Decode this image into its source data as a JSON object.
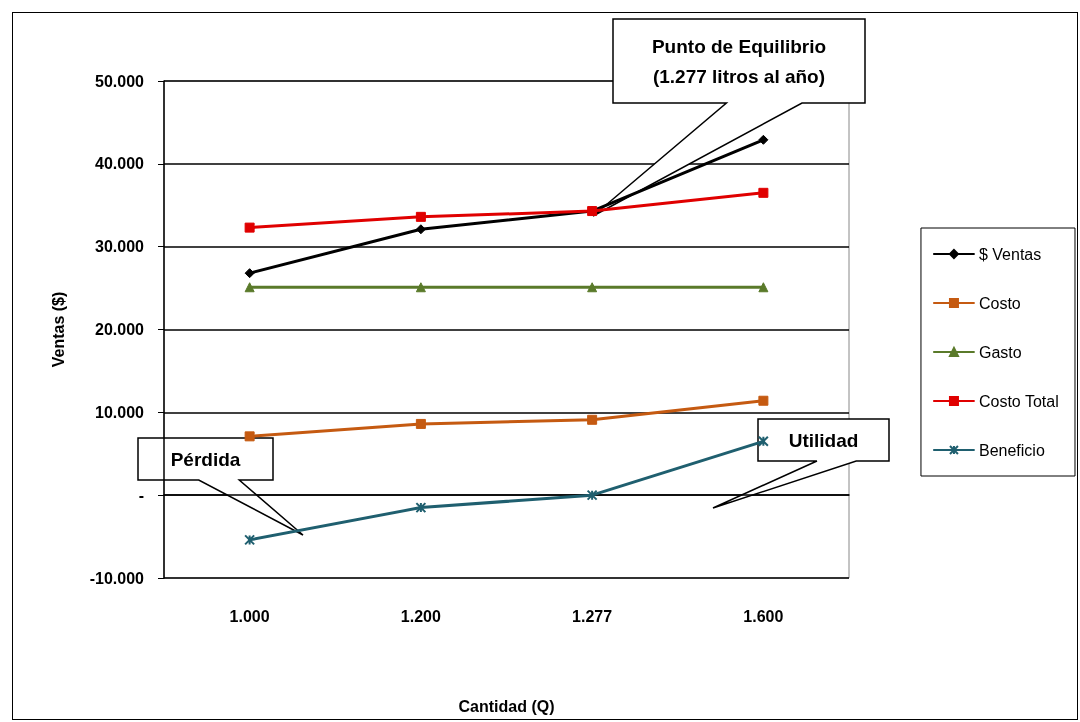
{
  "chart_data": {
    "type": "line",
    "xlabel": "Cantidad (Q)",
    "ylabel": "Ventas ($)",
    "categories": [
      "1.000",
      "1.200",
      "1.277",
      "1.600"
    ],
    "ylim": [
      -10000,
      50000
    ],
    "yticks": [
      {
        "value": -10000,
        "label": "-10.000"
      },
      {
        "value": 0,
        "label": "-"
      },
      {
        "value": 10000,
        "label": "10.000"
      },
      {
        "value": 20000,
        "label": "20.000"
      },
      {
        "value": 30000,
        "label": "30.000"
      },
      {
        "value": 40000,
        "label": "40.000"
      },
      {
        "value": 50000,
        "label": "50.000"
      }
    ],
    "grid": "y",
    "legend": "right",
    "line_style": "solid",
    "series": [
      {
        "name": "$ Ventas",
        "color": "#000000",
        "marker": "diamond",
        "values": [
          26800,
          32100,
          34300,
          42900
        ]
      },
      {
        "name": "Costo",
        "color": "#c55a11",
        "marker": "square",
        "values": [
          7100,
          8600,
          9100,
          11400
        ]
      },
      {
        "name": "Gasto",
        "color": "#5a7a2a",
        "marker": "triangle",
        "values": [
          25100,
          25100,
          25100,
          25100
        ]
      },
      {
        "name": "Costo Total",
        "color": "#e00000",
        "marker": "square",
        "values": [
          32300,
          33600,
          34300,
          36500
        ]
      },
      {
        "name": "Beneficio",
        "color": "#1f5f6f",
        "marker": "cross",
        "values": [
          -5400,
          -1500,
          0,
          6500
        ]
      }
    ],
    "annotations": [
      "Punto de Equilibrio\n(1.277 litros al año)",
      "Pérdida",
      "Utilidad"
    ]
  }
}
